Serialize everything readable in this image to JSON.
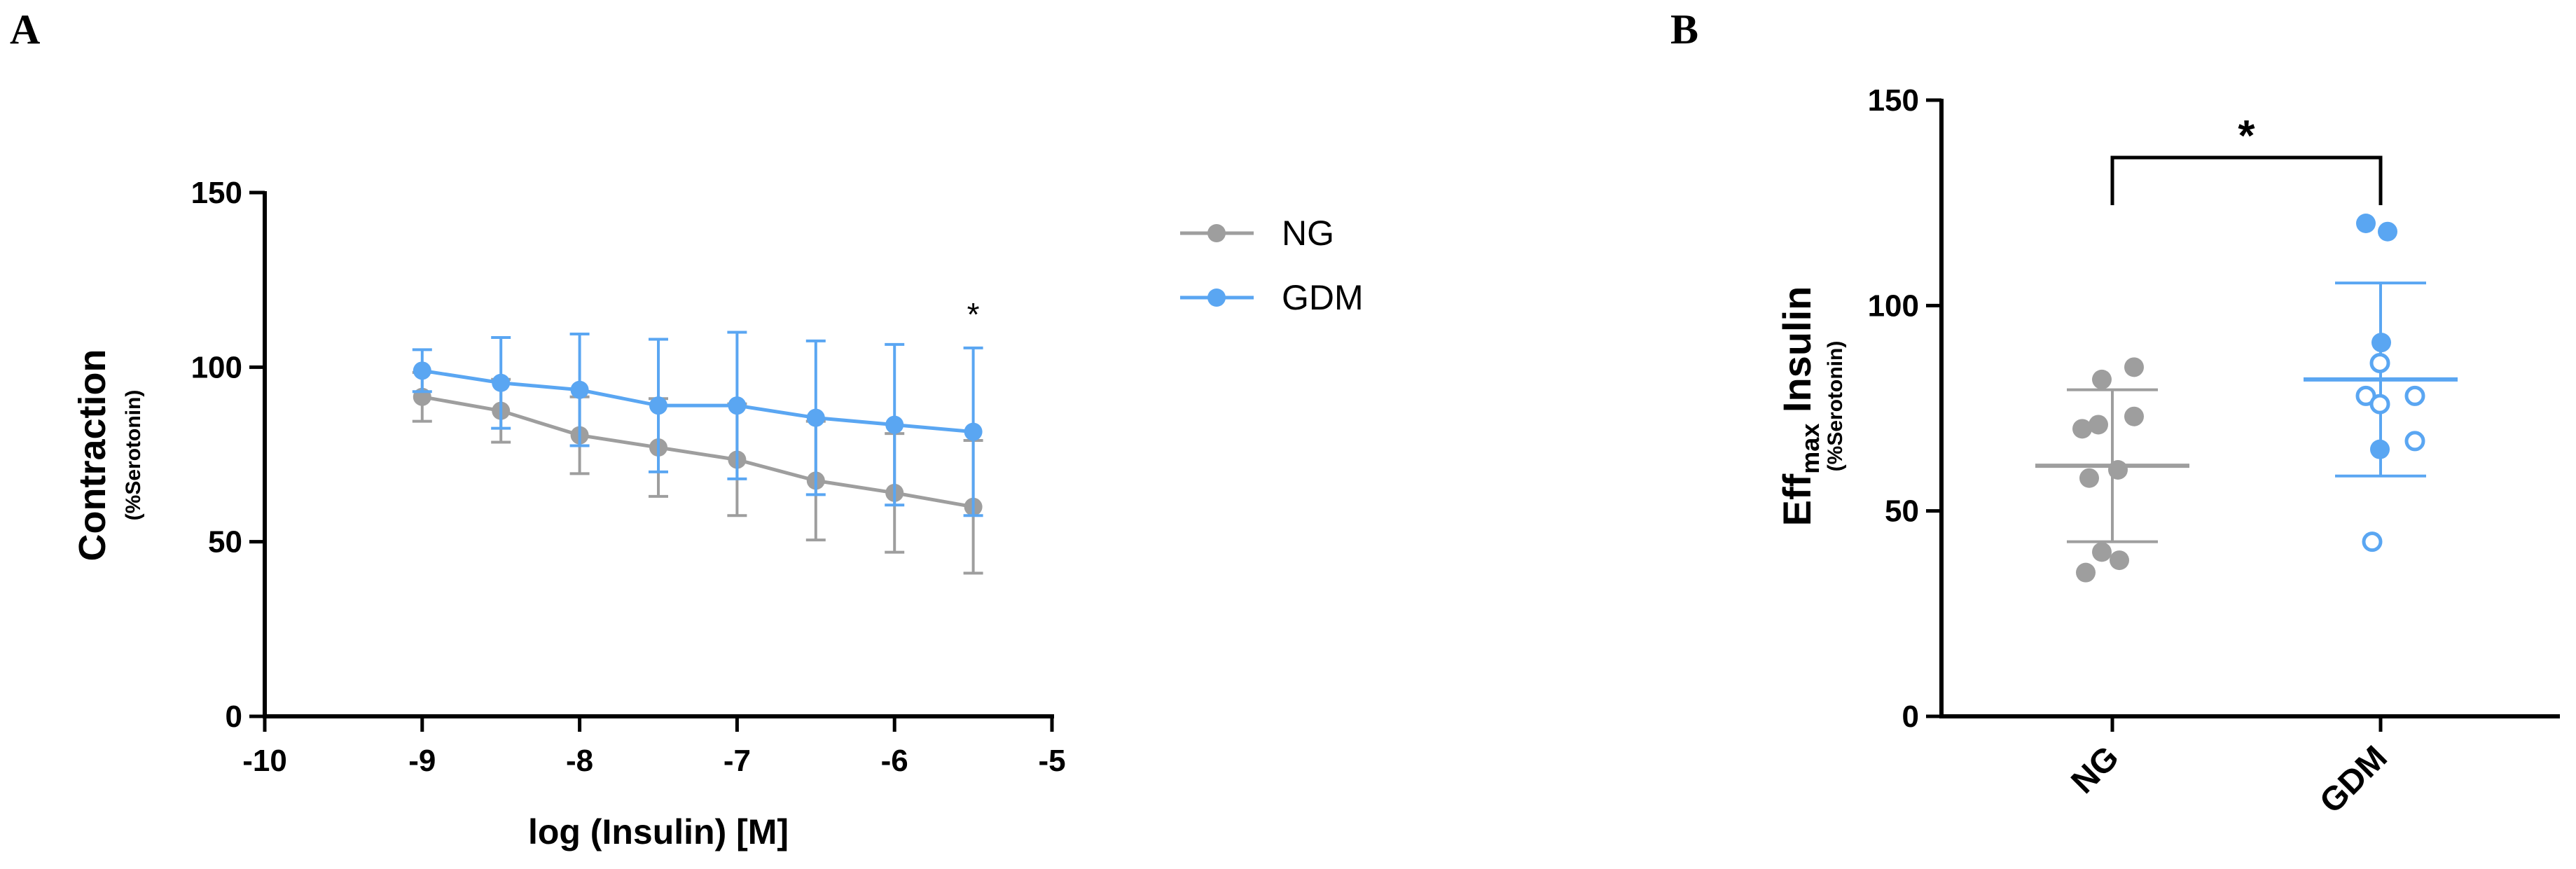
{
  "panels": {
    "a": "A",
    "b": "B"
  },
  "colors": {
    "ng": "#9e9e9e",
    "gdm": "#5aa6f2",
    "axis": "#000000"
  },
  "chart_data": [
    {
      "id": "A",
      "type": "line",
      "xlabel": "log (Insulin) [M]",
      "ylabel": "Contraction",
      "ylabel_sub": "(%Serotonin)",
      "xlim": [
        -10,
        -5
      ],
      "ylim": [
        0,
        150
      ],
      "xticks": [
        -10,
        -9,
        -8,
        -7,
        -6,
        -5
      ],
      "xtick_labels": [
        "-10",
        "-9",
        "-8",
        "-7",
        "-6",
        "-5"
      ],
      "yticks": [
        0,
        50,
        100,
        150
      ],
      "ytick_labels": [
        "0",
        "50",
        "100",
        "150"
      ],
      "legend": [
        {
          "name": "NG"
        },
        {
          "name": "GDM"
        }
      ],
      "annotations": [
        {
          "text": "*",
          "x": -5.5
        }
      ],
      "x": [
        -9,
        -8.5,
        -8,
        -7.5,
        -7,
        -6.5,
        -6,
        -5.5
      ],
      "series": [
        {
          "name": "NG",
          "values": [
            91.5,
            87.5,
            80.5,
            77,
            73.5,
            67.5,
            64,
            60
          ],
          "error": [
            7,
            9,
            11,
            14,
            16,
            17,
            17,
            19
          ]
        },
        {
          "name": "GDM",
          "values": [
            99,
            95.5,
            93.5,
            89,
            89,
            85.5,
            83.5,
            81.5
          ],
          "error": [
            6,
            13,
            16,
            19,
            21,
            22,
            23,
            24
          ]
        }
      ]
    },
    {
      "id": "B",
      "type": "scatter",
      "ylabel_main": "Eff",
      "ylabel_subscript": "max",
      "ylabel_rest": " Insulin",
      "ylabel_sub": "(%Serotonin)",
      "ylim": [
        0,
        150
      ],
      "yticks": [
        0,
        50,
        100,
        150
      ],
      "ytick_labels": [
        "0",
        "50",
        "100",
        "150"
      ],
      "categories": [
        "NG",
        "GDM"
      ],
      "significance": "*",
      "groups": [
        {
          "name": "NG",
          "mean": 61,
          "sd": 18.5,
          "points": [
            85,
            82,
            73,
            71,
            70,
            60,
            58,
            40,
            38,
            35
          ]
        },
        {
          "name": "GDM",
          "mean": 82,
          "sd": 23.5,
          "points": [
            120,
            118,
            91,
            86,
            78,
            78,
            76,
            67,
            65,
            42.5
          ],
          "open": [
            false,
            false,
            false,
            true,
            true,
            true,
            true,
            true,
            false,
            true
          ]
        }
      ]
    }
  ]
}
